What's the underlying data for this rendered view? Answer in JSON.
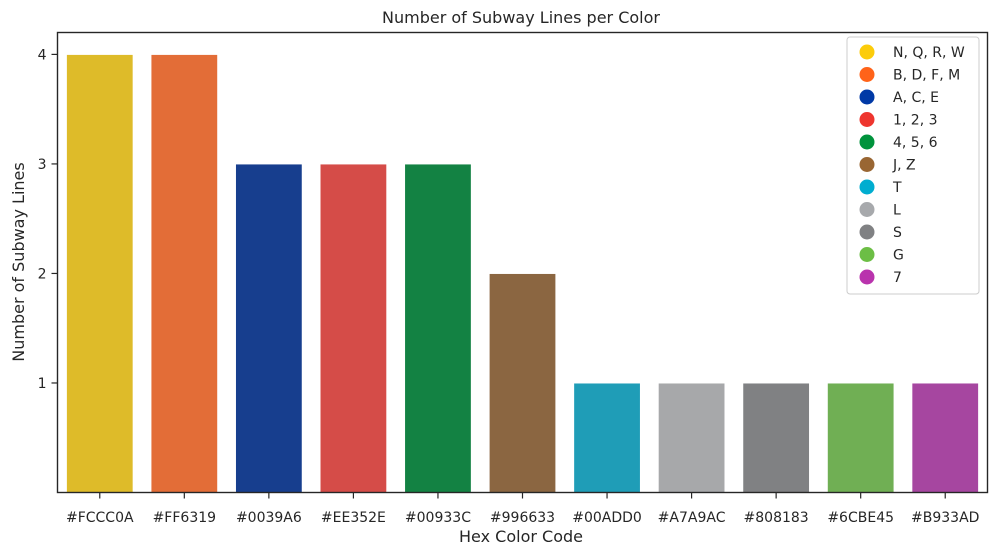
{
  "chart_data": {
    "type": "bar",
    "title": "Number of Subway Lines per Color",
    "xlabel": "Hex Color Code",
    "ylabel": "Number of Subway Lines",
    "ylim": [
      0,
      4.2
    ],
    "yticks": [
      1,
      2,
      3,
      4
    ],
    "grid": false,
    "legend_position": "top-right",
    "categories": [
      "#FCCC0A",
      "#FF6319",
      "#0039A6",
      "#EE352E",
      "#00933C",
      "#996633",
      "#00ADD0",
      "#A7A9AC",
      "#808183",
      "#6CBE45",
      "#B933AD"
    ],
    "values": [
      4,
      4,
      3,
      3,
      3,
      2,
      1,
      1,
      1,
      1,
      1
    ],
    "bar_colors": [
      "#DEBB29",
      "#E36D37",
      "#173E8E",
      "#D54C48",
      "#138243",
      "#8B6641",
      "#1F9DB7",
      "#A7A8AA",
      "#808183",
      "#70AF54",
      "#A646A0"
    ],
    "legend": [
      {
        "label": "N, Q, R, W",
        "color": "#FCCC0A"
      },
      {
        "label": "B, D, F, M",
        "color": "#FF6319"
      },
      {
        "label": "A, C, E",
        "color": "#0039A6"
      },
      {
        "label": "1, 2, 3",
        "color": "#EE352E"
      },
      {
        "label": "4, 5, 6",
        "color": "#00933C"
      },
      {
        "label": "J, Z",
        "color": "#996633"
      },
      {
        "label": "T",
        "color": "#00ADD0"
      },
      {
        "label": "L",
        "color": "#A7A9AC"
      },
      {
        "label": "S",
        "color": "#808183"
      },
      {
        "label": "G",
        "color": "#6CBE45"
      },
      {
        "label": "7",
        "color": "#B933AD"
      }
    ]
  }
}
